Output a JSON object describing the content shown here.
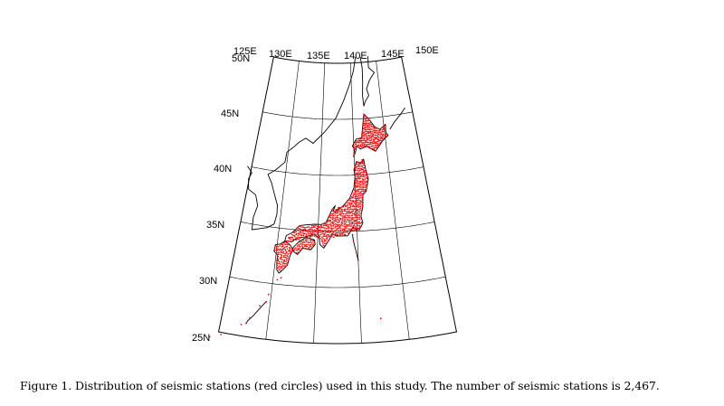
{
  "map": {
    "projection": "conic",
    "longitude_labels": [
      "125E",
      "130E",
      "135E",
      "140E",
      "145E",
      "150E"
    ],
    "latitude_labels": [
      "50N",
      "45N",
      "40N",
      "35N",
      "30N",
      "25N"
    ],
    "station_color": "#ee1111",
    "coastline_color": "#000000"
  },
  "caption": {
    "text": "Figure 1. Distribution of seismic stations (red circles) used in this study. The number of seismic stations is 2,467."
  }
}
